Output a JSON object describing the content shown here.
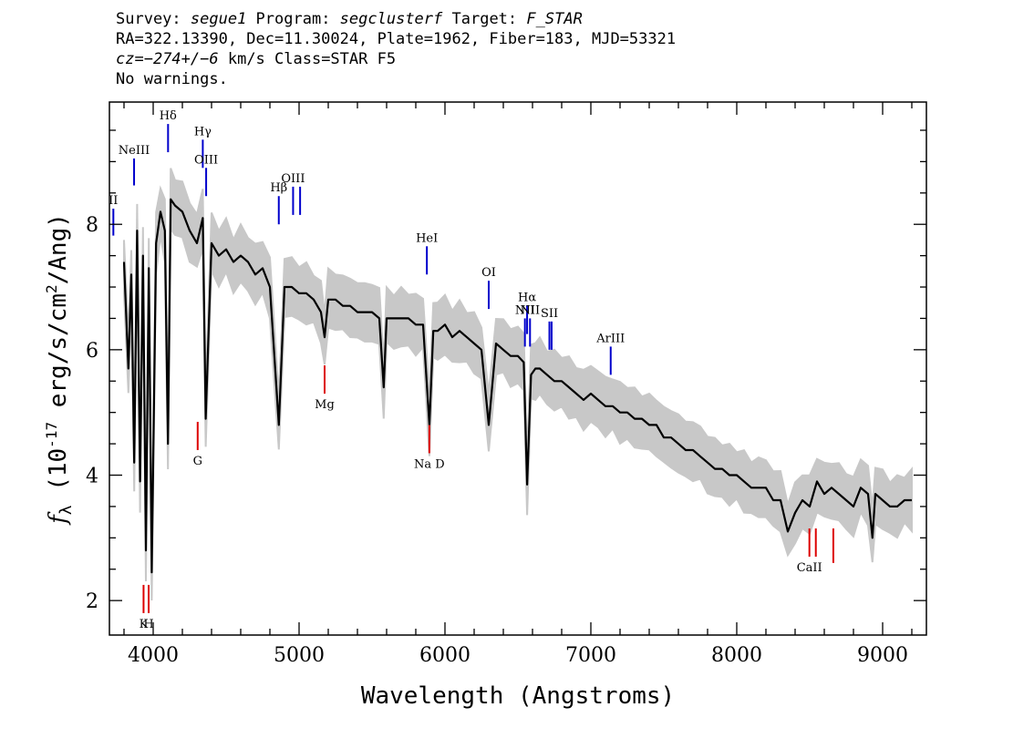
{
  "header": {
    "survey_label": "Survey: ",
    "survey": "segue1",
    "program_label": " Program: ",
    "program": "segclusterf",
    "target_label": " Target: ",
    "target": "F_STAR",
    "line2": "RA=322.13390, Dec=11.30024, Plate=1962, Fiber=183, MJD=53321",
    "cz_label": "cz=",
    "cz_value": "−274+/−6",
    "cz_rest": " km/s Class=STAR F5",
    "line4": "No warnings."
  },
  "chart_data": {
    "type": "line",
    "xlabel": "Wavelength (Angstroms)",
    "ylabel": "f_λ (10^-17 erg/s/cm^2/Ang)",
    "xlim": [
      3700,
      9300
    ],
    "ylim": [
      1.45,
      9.95
    ],
    "x_ticks": [
      4000,
      5000,
      6000,
      7000,
      8000,
      9000
    ],
    "y_ticks": [
      2,
      4,
      6,
      8
    ],
    "grid": false,
    "series": [
      {
        "color": "#000000",
        "x": [
          3800,
          3830,
          3850,
          3870,
          3890,
          3910,
          3930,
          3950,
          3970,
          3990,
          4020,
          4050,
          4080,
          4101,
          4120,
          4150,
          4200,
          4250,
          4300,
          4340,
          4360,
          4400,
          4450,
          4500,
          4550,
          4600,
          4650,
          4700,
          4750,
          4800,
          4861,
          4900,
          4950,
          5000,
          5050,
          5100,
          5150,
          5175,
          5200,
          5250,
          5300,
          5350,
          5400,
          5450,
          5500,
          5550,
          5580,
          5600,
          5650,
          5700,
          5750,
          5800,
          5850,
          5893,
          5920,
          5950,
          6000,
          6050,
          6100,
          6150,
          6200,
          6250,
          6300,
          6350,
          6400,
          6450,
          6500,
          6540,
          6563,
          6590,
          6620,
          6650,
          6700,
          6750,
          6800,
          6850,
          6900,
          6950,
          7000,
          7050,
          7100,
          7150,
          7200,
          7250,
          7300,
          7350,
          7400,
          7450,
          7500,
          7550,
          7600,
          7650,
          7700,
          7750,
          7800,
          7850,
          7900,
          7950,
          8000,
          8050,
          8100,
          8150,
          8200,
          8250,
          8300,
          8350,
          8400,
          8450,
          8500,
          8550,
          8600,
          8650,
          8700,
          8750,
          8800,
          8850,
          8900,
          8930,
          8950,
          9000,
          9050,
          9100,
          9150,
          9200
        ],
        "y": [
          7.4,
          5.7,
          7.2,
          4.2,
          7.9,
          3.9,
          7.5,
          2.8,
          7.3,
          2.45,
          7.7,
          8.2,
          7.9,
          4.5,
          8.4,
          8.3,
          8.2,
          7.9,
          7.7,
          8.1,
          4.9,
          7.7,
          7.5,
          7.6,
          7.4,
          7.5,
          7.4,
          7.2,
          7.3,
          7.0,
          4.8,
          7.0,
          7.0,
          6.9,
          6.9,
          6.8,
          6.6,
          6.2,
          6.8,
          6.8,
          6.7,
          6.7,
          6.6,
          6.6,
          6.6,
          6.5,
          5.4,
          6.5,
          6.5,
          6.5,
          6.5,
          6.4,
          6.4,
          4.8,
          6.3,
          6.3,
          6.4,
          6.2,
          6.3,
          6.2,
          6.1,
          6.0,
          4.8,
          6.1,
          6.0,
          5.9,
          5.9,
          5.8,
          3.85,
          5.6,
          5.7,
          5.7,
          5.6,
          5.5,
          5.5,
          5.4,
          5.3,
          5.2,
          5.3,
          5.2,
          5.1,
          5.1,
          5.0,
          5.0,
          4.9,
          4.9,
          4.8,
          4.8,
          4.6,
          4.6,
          4.5,
          4.4,
          4.4,
          4.3,
          4.2,
          4.1,
          4.1,
          4.0,
          4.0,
          3.9,
          3.8,
          3.8,
          3.8,
          3.6,
          3.6,
          3.1,
          3.4,
          3.6,
          3.5,
          3.9,
          3.7,
          3.8,
          3.7,
          3.6,
          3.5,
          3.8,
          3.7,
          3.0,
          3.7,
          3.6,
          3.5,
          3.5,
          3.6,
          3.6
        ]
      }
    ],
    "error_band_color": "#c8c8c8",
    "emission_lines": [
      {
        "label": "II",
        "x": 3727,
        "y_top": 8.25,
        "y_bot": 7.82
      },
      {
        "label": "NeIII",
        "x": 3869,
        "y_top": 9.05,
        "y_bot": 8.62
      },
      {
        "label": "Hδ",
        "x": 4102,
        "y_top": 9.6,
        "y_bot": 9.15
      },
      {
        "label": "Hγ",
        "x": 4340,
        "y_top": 9.35,
        "y_bot": 8.9
      },
      {
        "label": "OIII",
        "x": 4363,
        "y_top": 8.9,
        "y_bot": 8.45
      },
      {
        "label": "Hβ",
        "x": 4861,
        "y_top": 8.45,
        "y_bot": 8.0
      },
      {
        "label": "OIII",
        "x": 4959,
        "y_top": 8.6,
        "y_bot": 8.15
      },
      {
        "label": "",
        "x": 5007,
        "y_top": 8.6,
        "y_bot": 8.15
      },
      {
        "label": "HeI",
        "x": 5876,
        "y_top": 7.65,
        "y_bot": 7.2
      },
      {
        "label": "OI",
        "x": 6300,
        "y_top": 7.1,
        "y_bot": 6.65
      },
      {
        "label": "NII",
        "x": 6548,
        "y_top": 6.5,
        "y_bot": 6.05
      },
      {
        "label": "Hα",
        "x": 6563,
        "y_top": 6.7,
        "y_bot": 6.25
      },
      {
        "label": "NII",
        "x": 6583,
        "y_top": 6.5,
        "y_bot": 6.05
      },
      {
        "label": "SII",
        "x": 6716,
        "y_top": 6.45,
        "y_bot": 6.0
      },
      {
        "label": "",
        "x": 6731,
        "y_top": 6.45,
        "y_bot": 6.0
      },
      {
        "label": "ArIII",
        "x": 7136,
        "y_top": 6.05,
        "y_bot": 5.6
      }
    ],
    "absorption_lines": [
      {
        "label": "K",
        "x": 3934,
        "y_top": 2.25,
        "y_bot": 1.8
      },
      {
        "label": "H",
        "x": 3969,
        "y_top": 2.25,
        "y_bot": 1.8
      },
      {
        "label": "G",
        "x": 4305,
        "y_top": 4.85,
        "y_bot": 4.4
      },
      {
        "label": "Mg",
        "x": 5175,
        "y_top": 5.75,
        "y_bot": 5.3
      },
      {
        "label": "Na D",
        "x": 5893,
        "y_top": 4.8,
        "y_bot": 4.35
      },
      {
        "label": "CaII",
        "x": 8498,
        "y_top": 3.15,
        "y_bot": 2.7
      },
      {
        "label": "",
        "x": 8542,
        "y_top": 3.15,
        "y_bot": 2.7
      },
      {
        "label": "",
        "x": 8662,
        "y_top": 3.15,
        "y_bot": 2.6
      }
    ],
    "emission_color": "#0000cc",
    "absorption_color": "#dd0000"
  }
}
